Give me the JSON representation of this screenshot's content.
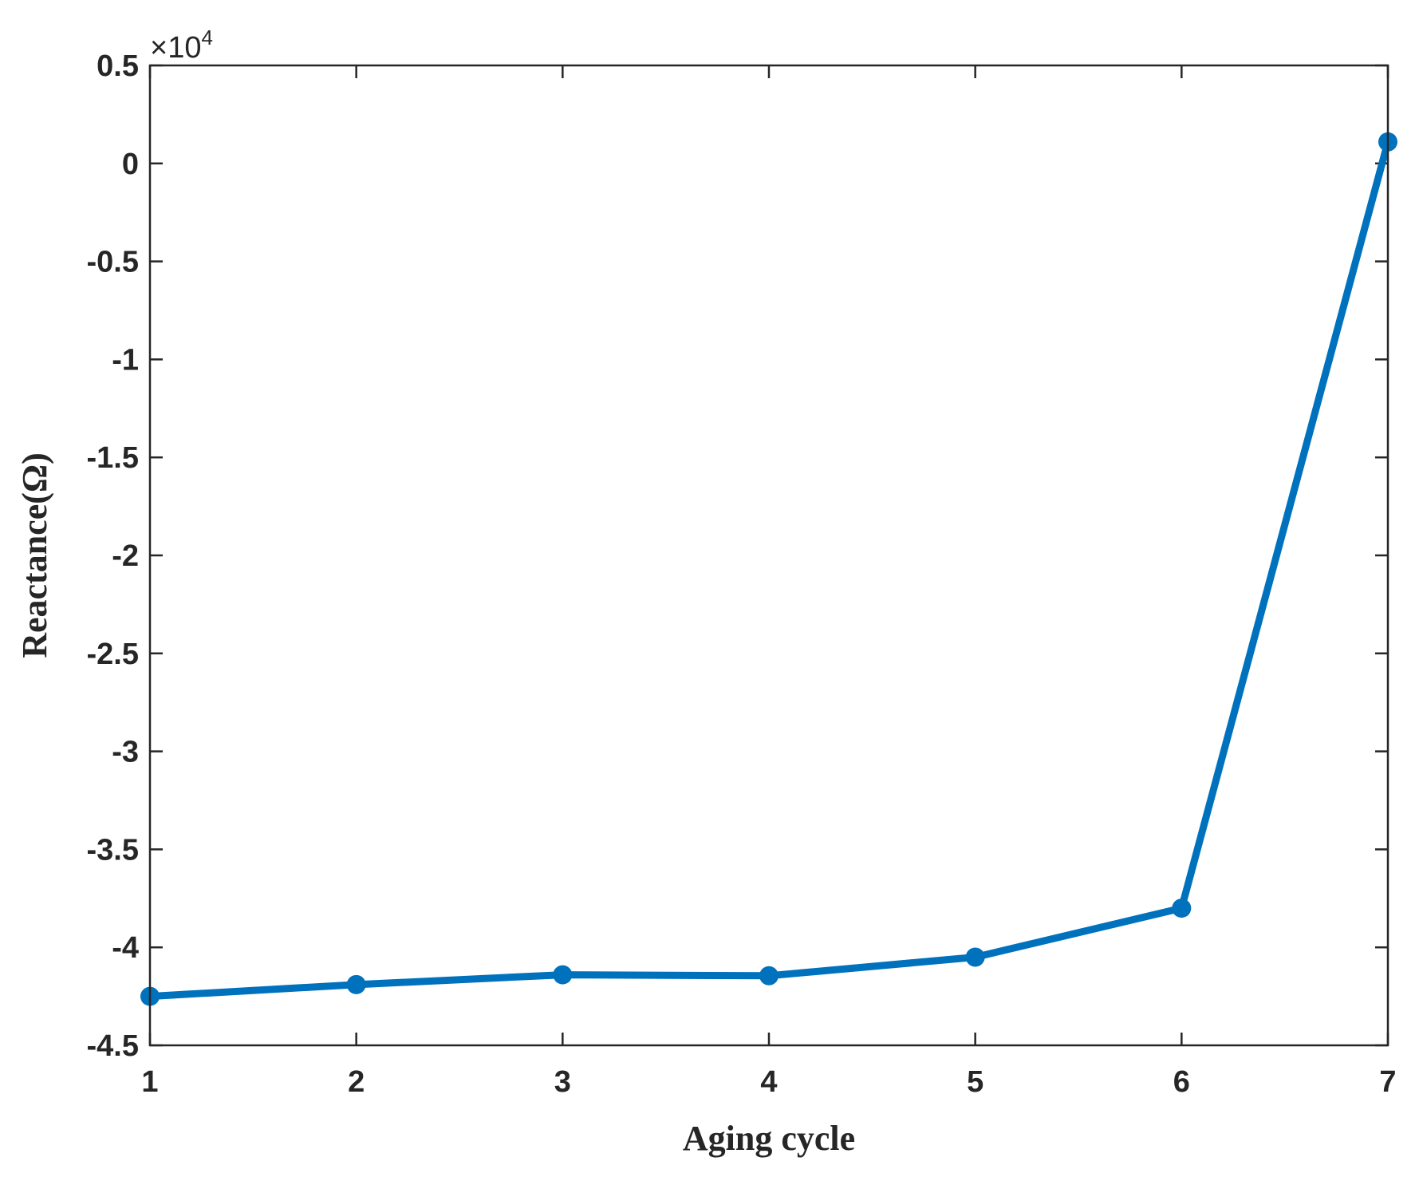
{
  "chart_data": {
    "type": "line",
    "xlabel": "Aging cycle",
    "ylabel": "Reactance(Ω)",
    "y_multiplier": "×10",
    "y_multiplier_exponent": "4",
    "xlim": [
      1,
      7
    ],
    "ylim": [
      -4.5,
      0.5
    ],
    "xticks": [
      "1",
      "2",
      "3",
      "4",
      "5",
      "6",
      "7"
    ],
    "yticks": [
      "0.5",
      "0",
      "-0.5",
      "-1",
      "-1.5",
      "-2",
      "-2.5",
      "-3",
      "-3.5",
      "-4",
      "-4.5"
    ],
    "grid": false,
    "line_color": "#0072BD",
    "series": [
      {
        "x": [
          1,
          2,
          3,
          4,
          5,
          6,
          7
        ],
        "y": [
          -4.25,
          -4.19,
          -4.14,
          -4.145,
          -4.05,
          -3.8,
          0.11
        ]
      }
    ]
  }
}
